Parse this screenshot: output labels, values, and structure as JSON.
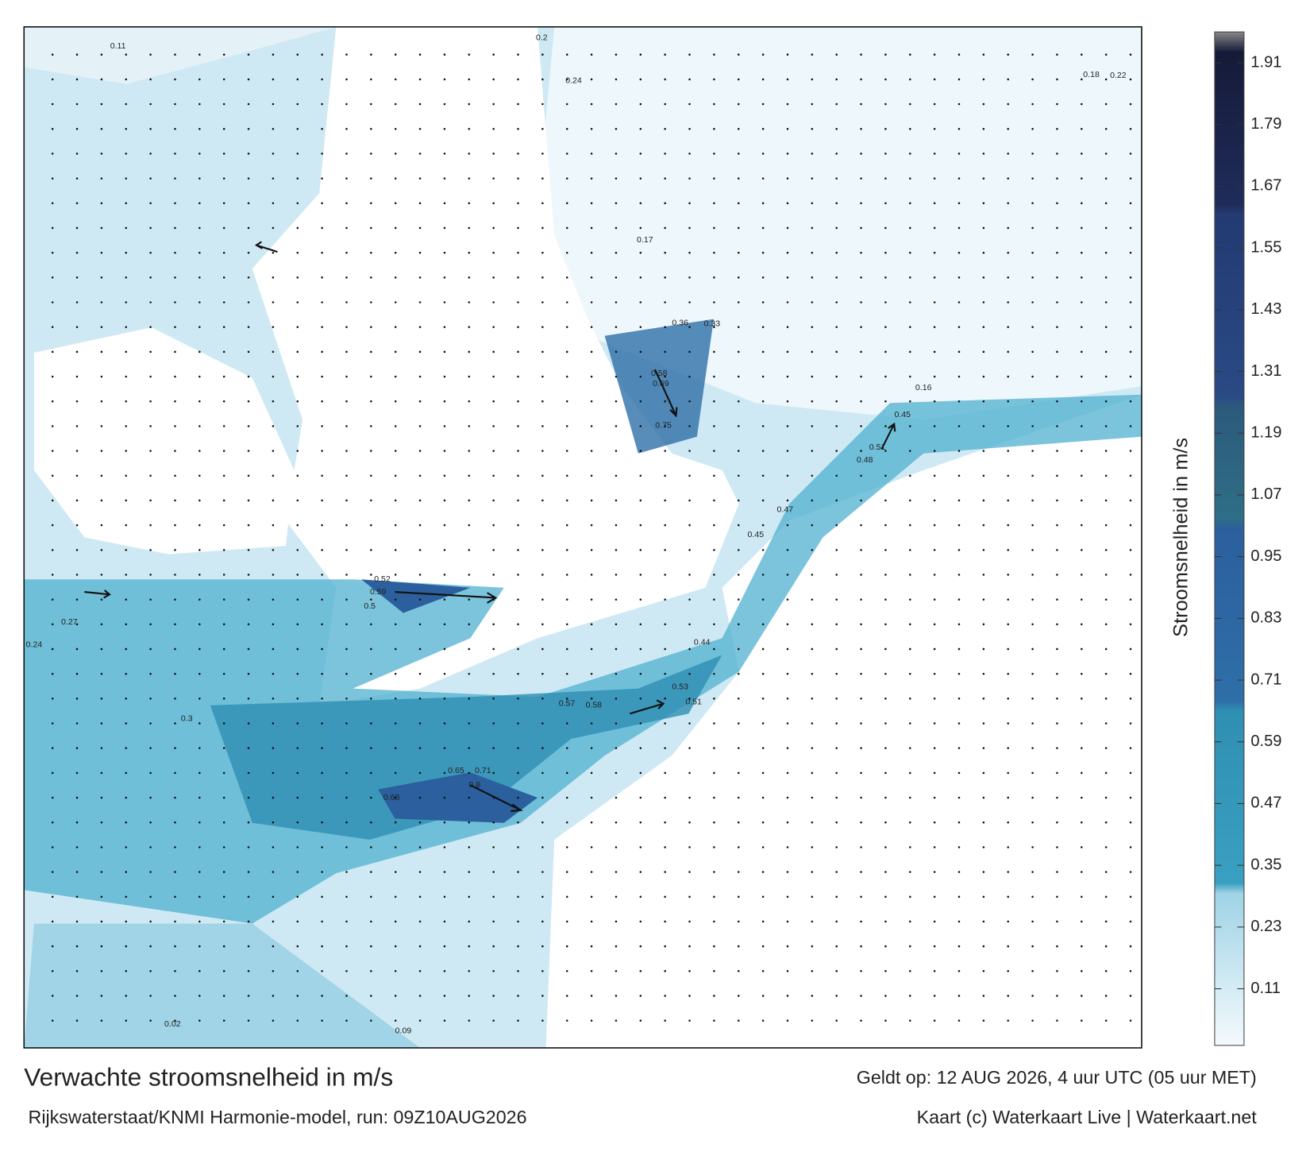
{
  "map": {
    "title": "Verwachte stroomsnelheid in m/s",
    "source": "Rijkswaterstaat/KNMI Harmonie-model, run: 09Z10AUG2026",
    "valid": "Geldt op: 12 AUG 2026, 4 uur UTC (05 uur MET)",
    "credit": "Kaart (c) Waterkaart Live | Waterkaart.net",
    "labels": [
      "0.75",
      "0.69",
      "0.58",
      "0.59",
      "0.52",
      "0.8",
      "0.71",
      "0.65",
      "0.68",
      "0.5",
      "0.57",
      "0.58",
      "0.53",
      "0.51",
      "0.44",
      "0.48",
      "0.51",
      "0.45",
      "0.47",
      "0.45",
      "0.36",
      "0.33",
      "0.3",
      "0.27",
      "0.24",
      "0.18",
      "0.22",
      "0.16",
      "0.09",
      "0.02",
      "0.11",
      "0.2",
      "0.24",
      "0.17"
    ]
  },
  "colorbar": {
    "label": "Stroomsnelheid in m/s",
    "lim": [
      0,
      1.97
    ],
    "ticks": [
      0.11,
      0.23,
      0.35,
      0.47,
      0.59,
      0.71,
      0.83,
      0.95,
      1.07,
      1.19,
      1.31,
      1.43,
      1.55,
      1.67,
      1.79,
      1.91
    ]
  }
}
